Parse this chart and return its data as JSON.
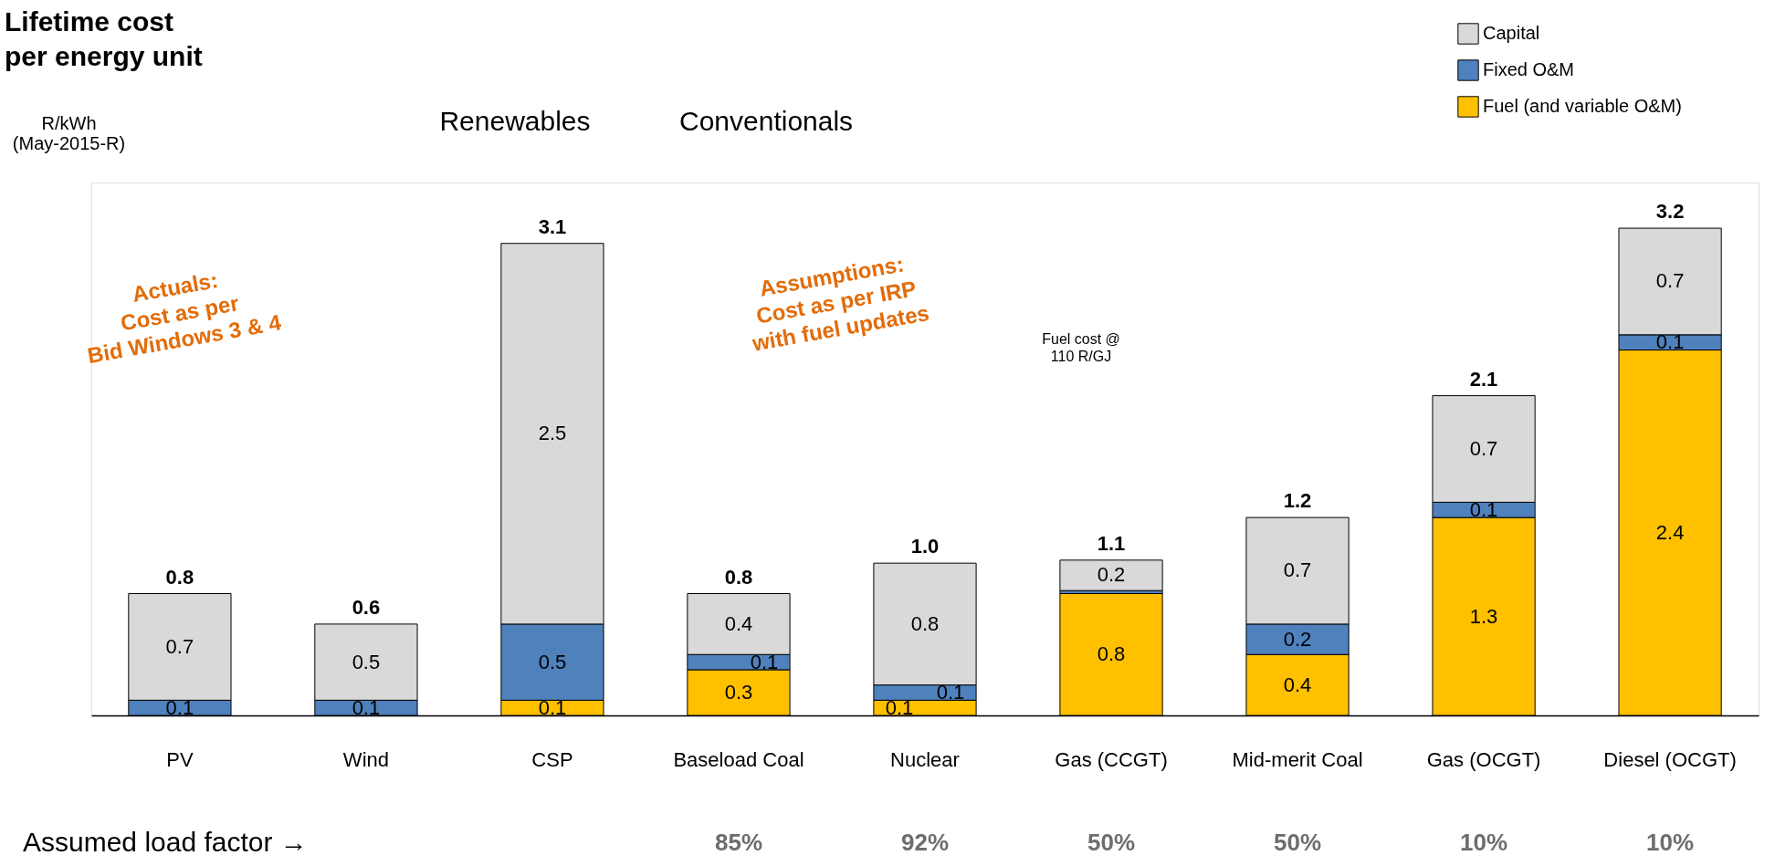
{
  "chart_data": {
    "type": "bar",
    "stacked": true,
    "title": "Lifetime cost\nper energy unit",
    "ylabel": "R/kWh\n(May-2015-R)",
    "categories": [
      "PV",
      "Wind",
      "CSP",
      "Baseload Coal",
      "Nuclear",
      "Gas (CCGT)",
      "Mid-merit Coal",
      "Gas (OCGT)",
      "Diesel (OCGT)"
    ],
    "series": [
      {
        "name": "Fuel (and variable O&M)",
        "color": "#ffc000",
        "values": [
          null,
          null,
          0.1,
          0.3,
          0.1,
          0.8,
          0.4,
          1.3,
          2.4
        ],
        "value_labels": [
          null,
          null,
          "0.1",
          "0.3",
          "0.1",
          "0.8",
          "0.4",
          "1.3",
          "2.4"
        ]
      },
      {
        "name": "Fixed O&M",
        "color": "#4f81bd",
        "values": [
          0.1,
          0.1,
          0.5,
          0.1,
          0.1,
          0.02,
          0.2,
          0.1,
          0.1
        ],
        "value_labels": [
          "0.1",
          "0.1",
          "0.5",
          "0.1",
          "0.1",
          null,
          "0.2",
          "0.1",
          "0.1"
        ]
      },
      {
        "name": "Capital",
        "color": "#d9d9d9",
        "values": [
          0.7,
          0.5,
          2.5,
          0.4,
          0.8,
          0.2,
          0.7,
          0.7,
          0.7
        ],
        "value_labels": [
          "0.7",
          "0.5",
          "2.5",
          "0.4",
          "0.8",
          "0.2",
          "0.7",
          "0.7",
          "0.7"
        ]
      }
    ],
    "totals": [
      "0.8",
      "0.6",
      "3.1",
      "0.8",
      "1.0",
      "1.1",
      "1.2",
      "2.1",
      "3.2"
    ],
    "ylim": [
      0,
      3.5
    ],
    "tick_labels": "x",
    "grid": false,
    "legend": "top right",
    "annotations": [
      "Renewables",
      "Conventionals",
      "Actuals:\nCost as per\nBid Windows 3 & 4",
      "Assumptions:\nCost as per IRP\nwith fuel updates",
      "Fuel cost @\n110 R/GJ",
      "Assumed load factor →",
      "85%",
      "92%",
      "50%",
      "50%",
      "10%",
      "10%"
    ]
  }
}
